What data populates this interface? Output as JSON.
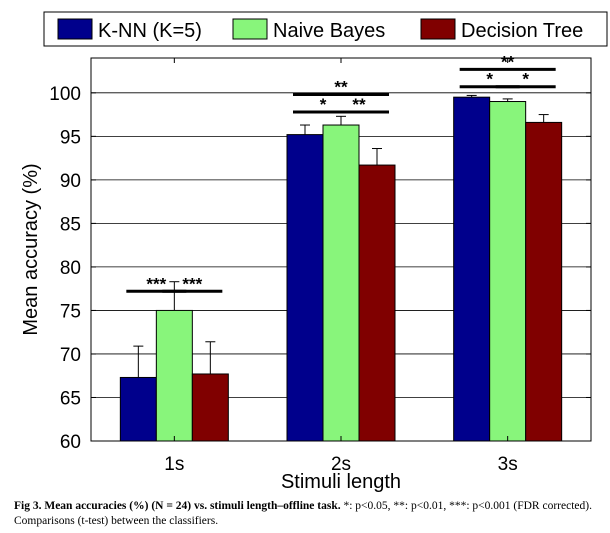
{
  "chart_data": {
    "type": "bar",
    "categories": [
      "1s",
      "2s",
      "3s"
    ],
    "series": [
      {
        "name": "K-NN (K=5)",
        "color": "#00008c",
        "values": [
          67.3,
          95.2,
          99.5
        ],
        "error": [
          3.6,
          1.1,
          0.2
        ]
      },
      {
        "name": "Naive Bayes",
        "color": "#88f57b",
        "values": [
          75.0,
          96.3,
          99.0
        ],
        "error": [
          3.3,
          1.0,
          0.3
        ]
      },
      {
        "name": "Decision Tree",
        "color": "#800000",
        "values": [
          67.7,
          91.7,
          96.6
        ],
        "error": [
          3.7,
          1.9,
          0.9
        ]
      }
    ],
    "xlabel": "Stimuli length",
    "ylabel": "Mean accuracy (%)",
    "ylim": [
      60,
      104
    ],
    "yticks": [
      60,
      65,
      70,
      75,
      80,
      85,
      90,
      95,
      100
    ],
    "grid": "horizontal",
    "legend": "top",
    "significance": [
      {
        "category": "1s",
        "from": 0,
        "to": 1,
        "label": "***",
        "y": 77.2
      },
      {
        "category": "1s",
        "from": 1,
        "to": 2,
        "label": "***",
        "y": 77.2
      },
      {
        "category": "2s",
        "from": 0,
        "to": 1,
        "label": "*",
        "y": 97.8
      },
      {
        "category": "2s",
        "from": 1,
        "to": 2,
        "label": "**",
        "y": 97.8
      },
      {
        "category": "2s",
        "from": 0,
        "to": 2,
        "label": "**",
        "y": 99.8
      },
      {
        "category": "3s",
        "from": 0,
        "to": 1,
        "label": "*",
        "y": 100.7
      },
      {
        "category": "3s",
        "from": 1,
        "to": 2,
        "label": "*",
        "y": 100.7
      },
      {
        "category": "3s",
        "from": 0,
        "to": 2,
        "label": "**",
        "y": 102.7
      }
    ]
  },
  "caption": {
    "lead": "Fig 3. Mean accuracies (%) (N = 24) vs. stimuli length–offline task.",
    "body": " *: p<0.05, **: p<0.01, ***: p<0.001 (FDR corrected). Comparisons (t-test) between the classifiers."
  }
}
